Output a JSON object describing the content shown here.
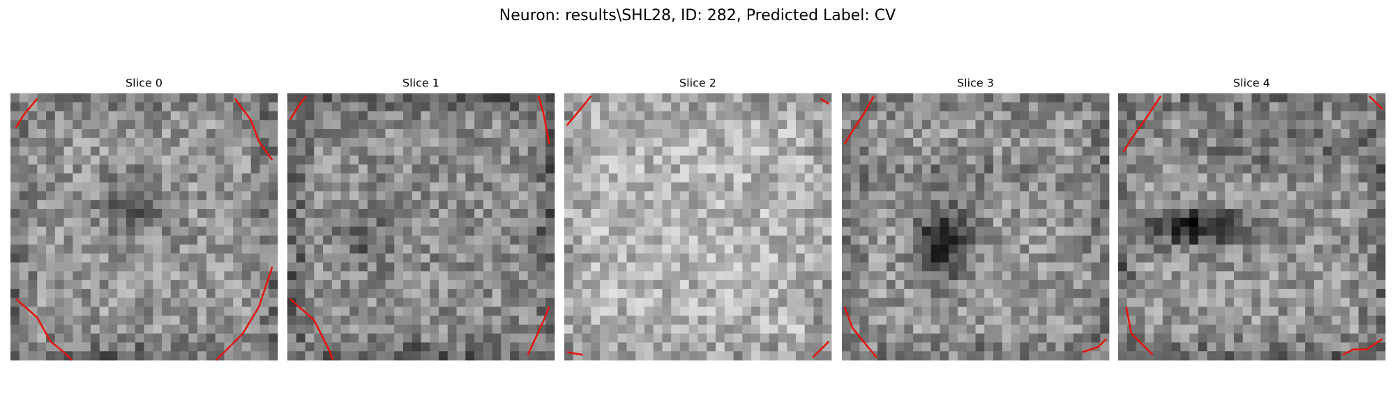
{
  "title": "Neuron: results\\SHL28, ID: 282, Predicted Label: CV",
  "panels": [
    {
      "title": "Slice 0"
    },
    {
      "title": "Slice 1"
    },
    {
      "title": "Slice 2"
    },
    {
      "title": "Slice 3"
    },
    {
      "title": "Slice 4"
    }
  ]
}
